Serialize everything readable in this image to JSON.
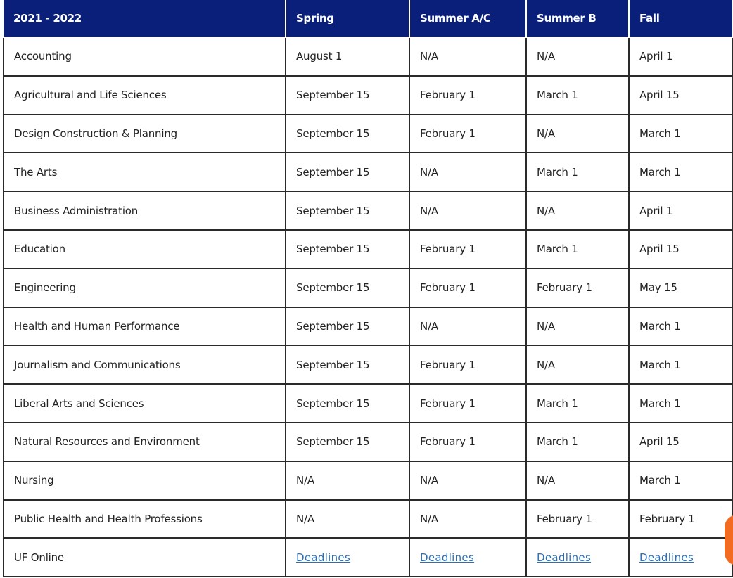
{
  "table": {
    "headers": [
      "2021 - 2022",
      "Spring",
      "Summer A/C",
      "Summer B",
      "Fall"
    ],
    "rows": [
      {
        "college": "Accounting",
        "spring": "August 1",
        "summer_ac": "N/A",
        "summer_b": "N/A",
        "fall": "April 1"
      },
      {
        "college": "Agricultural and Life Sciences",
        "spring": "September 15",
        "summer_ac": "February 1",
        "summer_b": "March 1",
        "fall": "April 15"
      },
      {
        "college": "Design Construction & Planning",
        "spring": "September 15",
        "summer_ac": "February 1",
        "summer_b": "N/A",
        "fall": "March 1"
      },
      {
        "college": "The Arts",
        "spring": "September 15",
        "summer_ac": "N/A",
        "summer_b": "March 1",
        "fall": "March 1"
      },
      {
        "college": "Business Administration",
        "spring": "September 15",
        "summer_ac": "N/A",
        "summer_b": "N/A",
        "fall": "April 1"
      },
      {
        "college": "Education",
        "spring": "September 15",
        "summer_ac": "February 1",
        "summer_b": "March 1",
        "fall": "April 15"
      },
      {
        "college": "Engineering",
        "spring": "September 15",
        "summer_ac": "February 1",
        "summer_b": "February 1",
        "fall": "May 15"
      },
      {
        "college": "Health and Human Performance",
        "spring": "September 15",
        "summer_ac": "N/A",
        "summer_b": "N/A",
        "fall": "March 1"
      },
      {
        "college": "Journalism and Communications",
        "spring": "September 15",
        "summer_ac": "February 1",
        "summer_b": "N/A",
        "fall": "March 1"
      },
      {
        "college": "Liberal Arts and Sciences",
        "spring": "September 15",
        "summer_ac": "February 1",
        "summer_b": "March 1",
        "fall": "March 1"
      },
      {
        "college": "Natural Resources and Environment",
        "spring": "September 15",
        "summer_ac": "February 1",
        "summer_b": "March 1",
        "fall": "April 15"
      },
      {
        "college": "Nursing",
        "spring": "N/A",
        "summer_ac": "N/A",
        "summer_b": "N/A",
        "fall": "March 1"
      },
      {
        "college": "Public Health and Health Professions",
        "spring": "N/A",
        "summer_ac": "N/A",
        "summer_b": "February 1",
        "fall": "February 1"
      }
    ],
    "online_row": {
      "college": "UF Online",
      "spring_link": "Deadlines",
      "summer_ac_link": "Deadlines",
      "summer_b_link": "Deadlines",
      "fall_link": "Deadlines"
    }
  },
  "colors": {
    "header_bg": "#0a1f7a",
    "link": "#2f6fb1",
    "chat_widget": "#f36a21"
  },
  "chat_widget": {
    "icon": "chat-bubble-icon"
  }
}
